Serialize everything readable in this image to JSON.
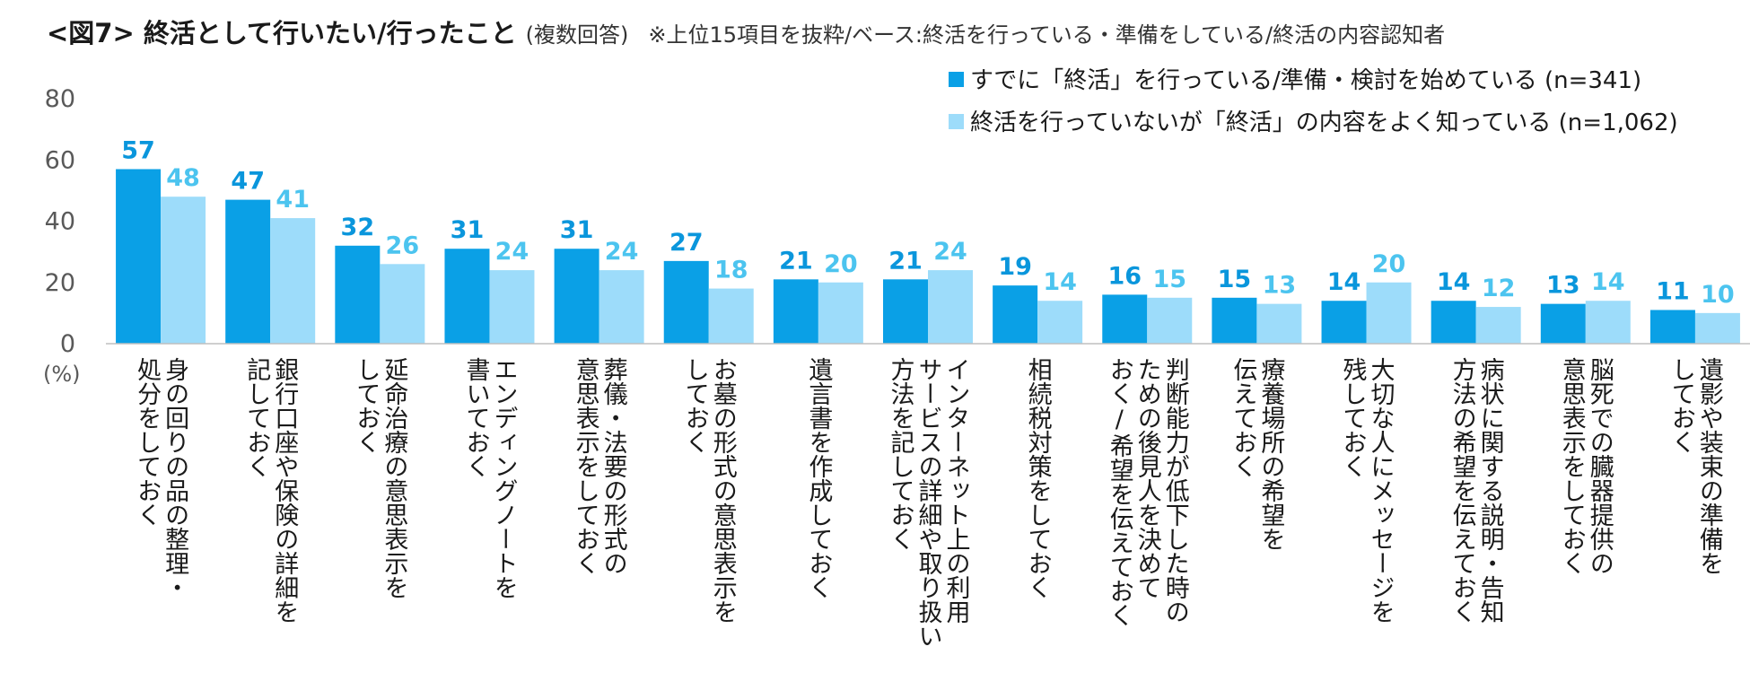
{
  "header": {
    "title": "<図7> 終活として行いたい/行ったこと",
    "subtitle": "(複数回答)",
    "note": "※上位15項目を抜粋/ベース:終活を行っている・準備をしている/終活の内容認知者"
  },
  "colors": {
    "series1": "#0aa0e6",
    "series2": "#9ddcfa",
    "label1": "#0a96dc",
    "label2": "#4cc4ef",
    "axis": "#bfbfbf"
  },
  "chart_data": {
    "type": "bar",
    "title": "<図7> 終活として行いたい/行ったこと",
    "ylabel": "(%)",
    "ylim": [
      0,
      80
    ],
    "yticks": [
      0,
      20,
      40,
      60,
      80
    ],
    "legend_position": "top-right",
    "categories": [
      [
        "身の回りの品の整理・",
        "処分をしておく"
      ],
      [
        "銀行口座や保険の詳細を",
        "記しておく"
      ],
      [
        "延命治療の意思表示を",
        "しておく"
      ],
      [
        "エンディングノートを",
        "書いておく"
      ],
      [
        "葬儀・法要の形式の",
        "意思表示をしておく"
      ],
      [
        "お墓の形式の意思表示を",
        "しておく"
      ],
      [
        "遺言書を作成しておく"
      ],
      [
        "インターネット上の利用",
        "サービスの詳細や取り扱い",
        "方法を記しておく"
      ],
      [
        "相続税対策をしておく"
      ],
      [
        "判断能力が低下した時の",
        "ための後見人を決めて",
        "おく/希望を伝えておく"
      ],
      [
        "療養場所の希望を",
        "伝えておく"
      ],
      [
        "大切な人にメッセージを",
        "残しておく"
      ],
      [
        "病状に関する説明・告知",
        "方法の希望を伝えておく"
      ],
      [
        "脳死での臓器提供の",
        "意思表示をしておく"
      ],
      [
        "遺影や装束の準備を",
        "しておく"
      ]
    ],
    "series": [
      {
        "name": "すでに「終活」を行っている/準備・検討を始めている (n=341)",
        "values": [
          57,
          47,
          32,
          31,
          31,
          27,
          21,
          21,
          19,
          16,
          15,
          14,
          14,
          13,
          11
        ]
      },
      {
        "name": "終活を行っていないが「終活」の内容をよく知っている (n=1,062)",
        "values": [
          48,
          41,
          26,
          24,
          24,
          18,
          20,
          24,
          14,
          15,
          13,
          20,
          12,
          14,
          10
        ]
      }
    ]
  }
}
